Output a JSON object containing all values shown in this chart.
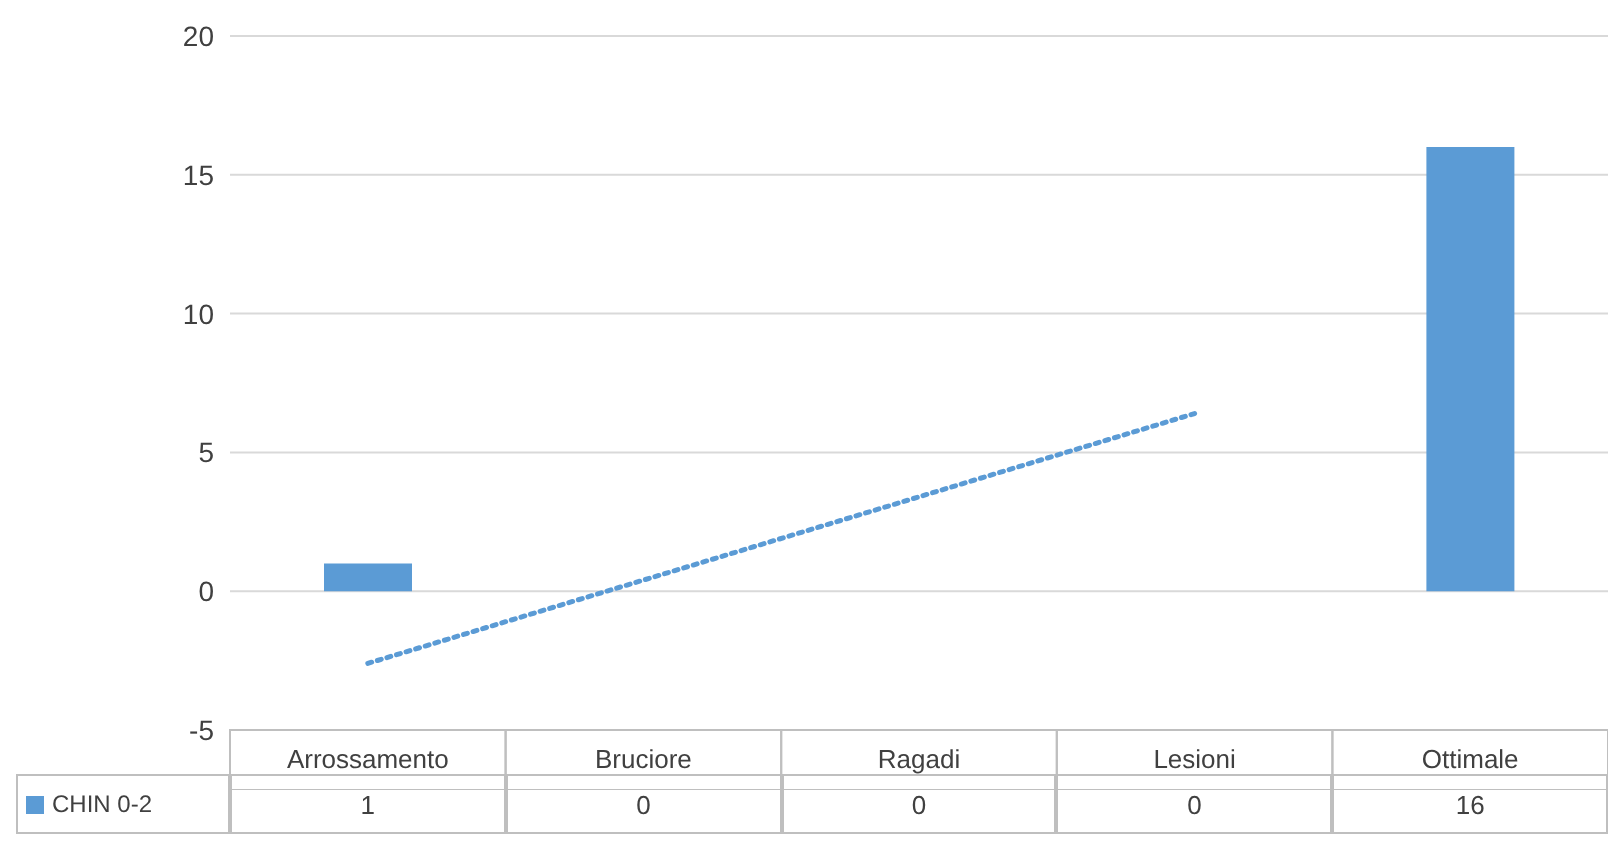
{
  "chart_data": {
    "type": "bar",
    "categories": [
      "Arrossamento",
      "Bruciore",
      "Ragadi",
      "Lesioni",
      "Ottimale"
    ],
    "series": [
      {
        "name": "CHIN 0-2",
        "color": "#5b9bd5",
        "values": [
          1,
          0,
          0,
          0,
          16
        ],
        "value_labels": [
          "1",
          "0",
          "0",
          "0",
          "16"
        ]
      },
      {
        "type": "line",
        "color": "#5b9bd5",
        "line_style": "dotted",
        "values": [
          -2.6,
          0.4,
          3.4,
          6.4,
          null
        ]
      }
    ],
    "ylim": [
      -5,
      20
    ],
    "yticks": [
      -5,
      0,
      5,
      10,
      15,
      20
    ],
    "grid": "y",
    "legend": "bottom"
  }
}
